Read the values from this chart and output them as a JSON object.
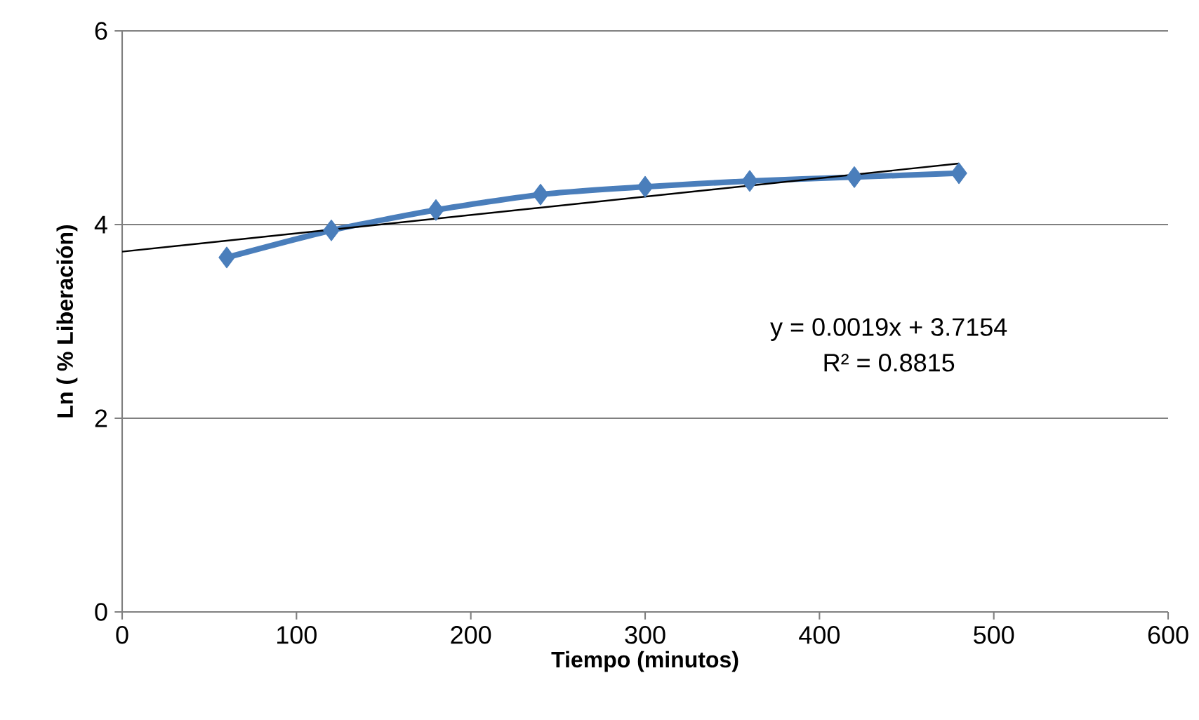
{
  "chart_data": {
    "type": "line",
    "xlabel": "Tiempo (minutos)",
    "ylabel": "Ln ( % Liberación)",
    "series": [
      {
        "color": "#4a7ebb",
        "marker": "diamond",
        "line_style": "solid",
        "x": [
          60,
          120,
          180,
          240,
          300,
          360,
          420,
          480
        ],
        "values": [
          3.66,
          3.94,
          4.15,
          4.31,
          4.39,
          4.45,
          4.49,
          4.53
        ]
      },
      {
        "color": "#000000",
        "marker": "none",
        "line_style": "solid",
        "x": [
          0,
          480
        ],
        "values": [
          3.72,
          4.63
        ]
      }
    ],
    "annotations": [
      "y = 0.0019x + 3.7154",
      "R² = 0.8815"
    ],
    "xlim": [
      0,
      600
    ],
    "xticks": [
      0,
      100,
      200,
      300,
      400,
      500,
      600
    ],
    "ylim": [
      0,
      6
    ],
    "yticks": [
      0,
      2,
      4,
      6
    ],
    "grid": "y"
  }
}
